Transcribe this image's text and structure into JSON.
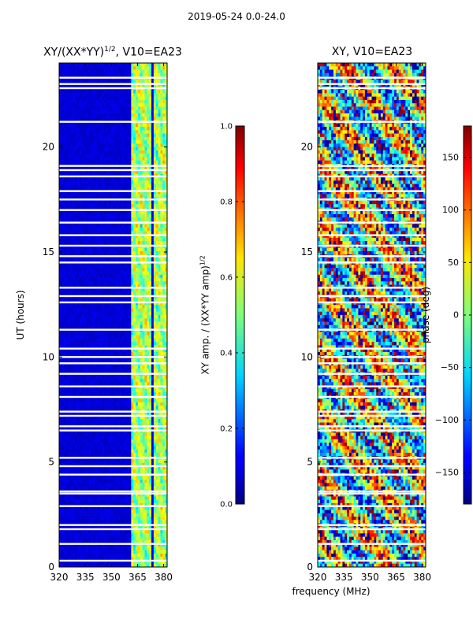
{
  "page": {
    "suptitle": "2019-05-24 0.0-24.0"
  },
  "chart_data": [
    {
      "type": "heatmap",
      "title": "XY/(XX*YY)",
      "title_power": "1/2",
      "title_suffix": ", V10=EA23",
      "xlabel": "frequency (MHz)",
      "ylabel": "UT (hours)",
      "xlim": [
        320,
        382
      ],
      "ylim": [
        0,
        24
      ],
      "xticks": [
        320,
        335,
        350,
        365,
        380
      ],
      "yticks": [
        0,
        5,
        10,
        15,
        20
      ],
      "colormap": "jet",
      "colorbar": {
        "label": "XY amp. / (XX*YY amp)",
        "label_power": "1/2",
        "range": [
          0.0,
          1.0
        ],
        "ticks": [
          "0.0",
          "0.2",
          "0.4",
          "0.6",
          "0.8",
          "1.0"
        ]
      },
      "features": {
        "low_amp_band_mhz": [
          320,
          361
        ],
        "high_amp_band_mhz": [
          361,
          382
        ],
        "flagged_hours": [
          23.3,
          23.0,
          22.8,
          21.2,
          19.1,
          18.9,
          18.6,
          17.9,
          17.5,
          17.0,
          16.4,
          15.8,
          15.3,
          14.8,
          14.5,
          13.3,
          12.9,
          12.6,
          11.3,
          10.4,
          10.0,
          9.7,
          9.2,
          8.6,
          8.1,
          7.4,
          7.2,
          6.7,
          6.5,
          5.2,
          4.8,
          4.4,
          3.6,
          3.5,
          2.9,
          2.0,
          1.8,
          1.1,
          0.3
        ]
      }
    },
    {
      "type": "heatmap",
      "title": "XY, V10=EA23",
      "xlim": [
        320,
        382
      ],
      "ylim": [
        0,
        24
      ],
      "xticks": [
        320,
        335,
        350,
        365,
        380
      ],
      "yticks": [
        0,
        5,
        10,
        15,
        20
      ],
      "colormap": "jet",
      "colorbar": {
        "label": "phase (deg)",
        "range": [
          -180,
          180
        ],
        "ticks": [
          "150",
          "100",
          "50",
          "0",
          "−50",
          "−100",
          "−150"
        ]
      },
      "features": {
        "phase_range_deg": [
          -180,
          180
        ],
        "flagged_hours": [
          23.3,
          23.0,
          22.8,
          21.2,
          19.1,
          18.9,
          18.6,
          17.9,
          17.5,
          17.0,
          16.4,
          15.8,
          15.3,
          14.8,
          14.5,
          13.3,
          12.9,
          12.6,
          11.3,
          10.4,
          10.0,
          9.7,
          9.2,
          8.6,
          8.1,
          7.4,
          7.2,
          6.7,
          6.5,
          5.2,
          4.8,
          4.4,
          3.6,
          3.5,
          2.9,
          2.0,
          1.8,
          1.1,
          0.3
        ]
      }
    }
  ]
}
